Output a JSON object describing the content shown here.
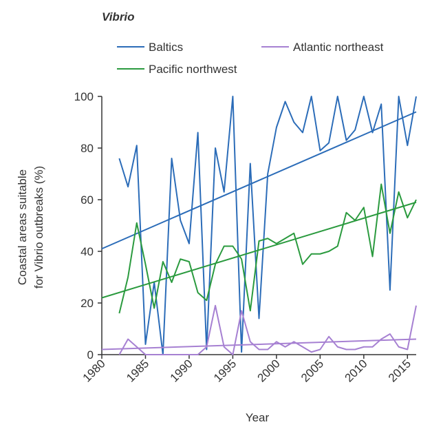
{
  "chart_data": {
    "type": "line",
    "title": "Vibrio",
    "x_label": "Year",
    "y_label": [
      "Coastal areas suitable",
      "for Vibrio outbreaks (%)"
    ],
    "x": [
      1982,
      1983,
      1984,
      1985,
      1986,
      1987,
      1988,
      1989,
      1990,
      1991,
      1992,
      1993,
      1994,
      1995,
      1996,
      1997,
      1998,
      1999,
      2000,
      2001,
      2002,
      2003,
      2004,
      2005,
      2006,
      2007,
      2008,
      2009,
      2010,
      2011,
      2012,
      2013,
      2014,
      2015,
      2016
    ],
    "series": [
      {
        "name": "Baltics",
        "color": "#2b6cb8",
        "values": [
          76,
          65,
          81,
          4,
          28,
          0,
          76,
          52,
          43,
          86,
          2,
          80,
          63,
          100,
          1,
          74,
          14,
          70,
          88,
          98,
          90,
          86,
          100,
          79,
          82,
          100,
          83,
          87,
          100,
          86,
          97,
          25,
          100,
          81,
          100
        ],
        "trend": [
          41,
          94
        ]
      },
      {
        "name": "Atlantic northeast",
        "color": "#a680d2",
        "values": [
          0,
          6,
          3,
          0,
          0,
          0,
          0,
          0,
          0,
          0,
          3,
          19,
          3,
          0,
          17,
          5,
          2,
          2,
          5,
          3,
          5,
          3,
          1,
          2,
          7,
          3,
          2,
          2,
          3,
          3,
          6,
          8,
          3,
          2,
          19
        ],
        "trend": [
          2,
          6
        ]
      },
      {
        "name": "Pacific northwest",
        "color": "#2a9a3e",
        "values": [
          16,
          30,
          51,
          35,
          18,
          36,
          28,
          37,
          36,
          24,
          21,
          35,
          42,
          42,
          37,
          17,
          44,
          45,
          43,
          45,
          47,
          35,
          39,
          39,
          40,
          42,
          55,
          52,
          57,
          38,
          66,
          47,
          63,
          53,
          60
        ],
        "trend": [
          22,
          59
        ]
      }
    ],
    "xlim": [
      1980,
      2016
    ],
    "xticks": [
      1980,
      1985,
      1990,
      1995,
      2000,
      2005,
      2010,
      2015
    ],
    "ylim": [
      0,
      100
    ],
    "yticks": [
      0,
      20,
      40,
      60,
      80,
      100
    ],
    "grid": false
  }
}
